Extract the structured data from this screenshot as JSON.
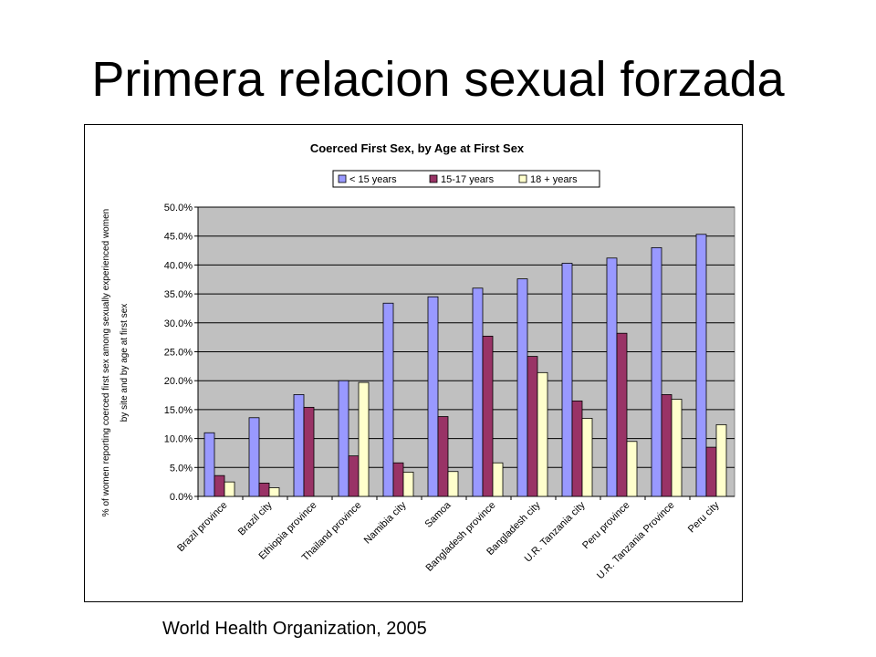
{
  "slide": {
    "title": "Primera relacion sexual forzada",
    "source": "World Health Organization, 2005"
  },
  "colors": {
    "plot_bg": "#C0C0C0",
    "series": [
      "#9999FF",
      "#993366",
      "#FFFFCC"
    ]
  },
  "chart_data": {
    "type": "bar",
    "title": "Coerced First Sex, by Age at First Sex",
    "ylabel_lines": [
      "% of women reporting coerced first sex among sexually experienced women",
      "by site and by age at first sex"
    ],
    "xlabel": "",
    "ylim": [
      0,
      50
    ],
    "ytick_labels": [
      "0.0%",
      "5.0%",
      "10.0%",
      "15.0%",
      "20.0%",
      "25.0%",
      "30.0%",
      "35.0%",
      "40.0%",
      "45.0%",
      "50.0%"
    ],
    "legend_position": "top",
    "grid": true,
    "categories": [
      "Brazil province",
      "Brazil city",
      "Ethiopia province",
      "Thailand province",
      "Namibia city",
      "Samoa",
      "Bangladesh province",
      "Bangladesh city",
      "U.R. Tanzania city",
      "Peru province",
      "U.R. Tanzania Province",
      "Peru city"
    ],
    "series": [
      {
        "name": "< 15 years",
        "values": [
          11.0,
          13.6,
          17.6,
          20.0,
          33.4,
          34.5,
          36.0,
          37.6,
          40.3,
          41.2,
          43.0,
          45.3
        ]
      },
      {
        "name": "15-17 years",
        "values": [
          3.6,
          2.3,
          15.4,
          7.0,
          5.8,
          13.8,
          27.7,
          24.2,
          16.5,
          28.2,
          17.6,
          8.5
        ]
      },
      {
        "name": "18 + years",
        "values": [
          2.5,
          1.5,
          0,
          19.7,
          4.2,
          4.3,
          5.8,
          21.4,
          13.5,
          9.5,
          16.8,
          12.4
        ]
      }
    ]
  }
}
